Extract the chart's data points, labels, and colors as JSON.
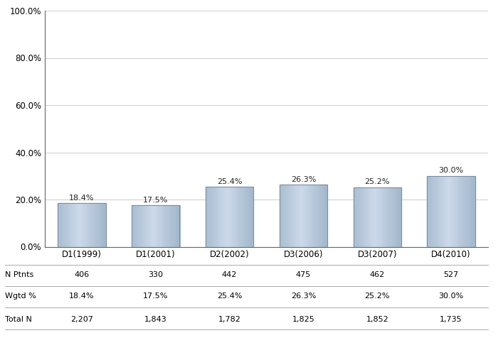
{
  "categories": [
    "D1(1999)",
    "D1(2001)",
    "D2(2002)",
    "D3(2006)",
    "D3(2007)",
    "D4(2010)"
  ],
  "values": [
    18.4,
    17.5,
    25.4,
    26.3,
    25.2,
    30.0
  ],
  "n_ptnts": [
    "406",
    "330",
    "442",
    "475",
    "462",
    "527"
  ],
  "wgtd_pct": [
    "18.4%",
    "17.5%",
    "25.4%",
    "26.3%",
    "25.2%",
    "30.0%"
  ],
  "total_n": [
    "2,207",
    "1,843",
    "1,782",
    "1,825",
    "1,852",
    "1,735"
  ],
  "ylim": [
    0,
    100
  ],
  "yticks": [
    0,
    20,
    40,
    60,
    80,
    100
  ],
  "ytick_labels": [
    "0.0%",
    "20.0%",
    "40.0%",
    "60.0%",
    "80.0%",
    "100.0%"
  ],
  "value_labels": [
    "18.4%",
    "17.5%",
    "25.4%",
    "26.3%",
    "25.2%",
    "30.0%"
  ],
  "background_color": "#ffffff",
  "grid_color": "#d0d0d0",
  "bar_edge_color": "#7a8a9a",
  "label_n_ptnts": "N Ptnts",
  "label_wgtd": "Wgtd %",
  "label_total_n": "Total N",
  "table_fontsize": 8.0,
  "value_fontsize": 8.0,
  "tick_fontsize": 8.5,
  "cat_fontsize": 8.5
}
